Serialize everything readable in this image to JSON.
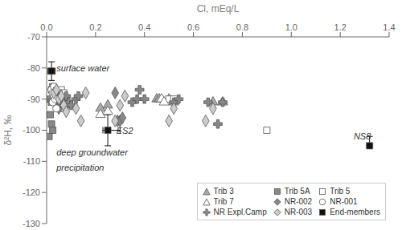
{
  "chart_data": {
    "type": "scatter",
    "x_label": "Cl, mEq/L",
    "y_label": "δ²H, ‰",
    "xlim": [
      0,
      1.4
    ],
    "ylim": [
      -130,
      -70
    ],
    "xticks": [
      {
        "value": 0,
        "label": "0.0"
      },
      0.2,
      0.4,
      0.6,
      0.8,
      {
        "value": 1,
        "label": "1.0"
      },
      1.2,
      1.4
    ],
    "yticks": [
      -130,
      -120,
      -110,
      -100,
      -90,
      -80,
      -70
    ],
    "grid": false,
    "legend": "lower right",
    "series": [
      {
        "name": "Trib 3",
        "color": "#aaaaaa",
        "marker": "triangle",
        "x": [
          0.04,
          0.05,
          0.06,
          0.055,
          0.048,
          0.052,
          0.07,
          0.08,
          0.09,
          0.22,
          0.25,
          0.45,
          0.46,
          0.5,
          0.52,
          0.68,
          0.72
        ],
        "y": [
          -88,
          -91,
          -89,
          -92,
          -90,
          -88,
          -93,
          -91,
          -92,
          -93,
          -92,
          -90,
          -90,
          -90,
          -91,
          -91,
          -91
        ]
      },
      {
        "name": "Trib 5A",
        "color": "#888888",
        "marker": "square",
        "x": [
          0.02,
          0.025,
          0.03,
          0.035,
          0.04,
          0.015,
          0.02,
          0.025,
          0.01,
          0.015,
          0.02
        ],
        "y": [
          -87,
          -86,
          -88,
          -90,
          -92,
          -95,
          -98,
          -100,
          -102,
          -90,
          -91
        ]
      },
      {
        "name": "Trib 5",
        "color": "#ffffff",
        "marker": "square",
        "x": [
          0.06,
          0.07,
          0.5,
          0.52,
          0.9
        ],
        "y": [
          -87,
          -88,
          -90,
          -90,
          -100
        ]
      },
      {
        "name": "Trib 7",
        "color": "#ffffff",
        "marker": "triangle",
        "x": [
          0.05,
          0.06,
          0.07,
          0.22,
          0.25,
          0.47,
          0.48
        ],
        "y": [
          -93,
          -92,
          -93,
          -95,
          -94,
          -90,
          -91
        ]
      },
      {
        "name": "NR-002",
        "color": "#888888",
        "marker": "diamond",
        "x": [
          0.04,
          0.05,
          0.06,
          0.055,
          0.05,
          0.06,
          0.07,
          0.08,
          0.28,
          0.29,
          0.3,
          0.31
        ],
        "y": [
          -88,
          -90,
          -89,
          -92,
          -93,
          -91,
          -91,
          -92,
          -88,
          -97,
          -97,
          -96
        ]
      },
      {
        "name": "NR-001",
        "color": "#ffffff",
        "marker": "circle",
        "x": [
          0.02,
          0.025,
          0.03,
          0.025,
          0.03,
          0.035,
          0.04
        ],
        "y": [
          -87,
          -88,
          -86,
          -91,
          -89,
          -90,
          -93
        ]
      },
      {
        "name": "NR Expl.Camp",
        "color": "#888888",
        "marker": "cross",
        "x": [
          0.06,
          0.07,
          0.08,
          0.09,
          0.1,
          0.12,
          0.13,
          0.35,
          0.37,
          0.38,
          0.4,
          0.52,
          0.54,
          0.66,
          0.7,
          0.72
        ],
        "y": [
          -91,
          -90,
          -89,
          -91,
          -92,
          -90,
          -89,
          -91,
          -90,
          -87,
          -90,
          -91,
          -90,
          -91,
          -98,
          -91
        ]
      },
      {
        "name": "NR-003",
        "color": "#cccccc",
        "marker": "diamond",
        "x": [
          0.03,
          0.04,
          0.05,
          0.06,
          0.07,
          0.08,
          0.12,
          0.14,
          0.16,
          0.28,
          0.3,
          0.32,
          0.5,
          0.52,
          0.65,
          0.68
        ],
        "y": [
          -88,
          -87,
          -90,
          -89,
          -92,
          -94,
          -93,
          -97,
          -88,
          -97,
          -92,
          -89,
          -97,
          -93,
          -97,
          -93
        ]
      },
      {
        "name": "End-members",
        "color": "#111111",
        "marker": "square",
        "x": [
          0.02,
          0.25,
          1.32
        ],
        "y": [
          -81,
          -100,
          -105
        ],
        "x_error": [
          [
            0.015,
            0.015
          ],
          [
            0.02,
            0.05
          ],
          [
            0.0,
            0.0
          ]
        ],
        "y_error": [
          [
            3,
            3
          ],
          [
            5,
            5
          ],
          [
            0,
            3
          ]
        ]
      }
    ],
    "annotations": [
      {
        "text": "surface water",
        "x": 0.04,
        "y": -80
      },
      {
        "text": "ES2",
        "x": 0.285,
        "y": -100
      },
      {
        "text": "deep groundwater",
        "x": 0.04,
        "y": -107
      },
      {
        "text": "precipitation",
        "x": 0.04,
        "y": -112
      },
      {
        "text": "NS8",
        "x": 1.255,
        "y": -102
      }
    ]
  }
}
